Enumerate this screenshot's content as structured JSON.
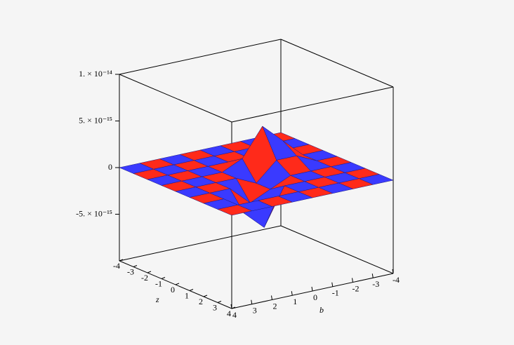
{
  "chart_data": {
    "type": "surface",
    "b_axis": {
      "label": "b",
      "lim": [
        -4,
        4
      ],
      "ticks": [
        -4,
        -3,
        -2,
        -1,
        0,
        1,
        2,
        3,
        4
      ]
    },
    "z_axis": {
      "label": "z",
      "lim": [
        -4,
        4
      ],
      "ticks": [
        -4,
        -3,
        -2,
        -1,
        0,
        1,
        2,
        3,
        4
      ]
    },
    "value_axis": {
      "lim": [
        -1e-14,
        1e-14
      ],
      "ticks": [
        {
          "value": 1e-14,
          "label": "1. × 10⁻¹⁴"
        },
        {
          "value": 5e-15,
          "label": "5. × 10⁻¹⁵"
        },
        0,
        {
          "value": -5e-15,
          "label": "-5. × 10⁻¹⁵"
        }
      ]
    },
    "colors": [
      "#ff2a1a",
      "#3a3aff"
    ],
    "values": [
      [
        0,
        0,
        0,
        0,
        0,
        0,
        0,
        0,
        0
      ],
      [
        0,
        0,
        0,
        0,
        0,
        0,
        0,
        0,
        0
      ],
      [
        0,
        0,
        0,
        0,
        0,
        0,
        0,
        0,
        0
      ],
      [
        0,
        0,
        2e-15,
        4e-15,
        1e-15,
        0,
        0,
        0,
        0
      ],
      [
        0,
        0,
        1e-15,
        1e-15,
        -1e-15,
        0,
        0,
        0,
        0
      ],
      [
        0,
        0,
        0,
        0,
        -1e-15,
        -2e-15,
        0,
        0,
        0
      ],
      [
        0,
        0,
        0,
        0,
        0,
        -4e-15,
        -2e-15,
        0,
        0
      ],
      [
        0,
        0,
        0,
        0,
        0,
        0,
        0,
        0,
        0
      ],
      [
        0,
        0,
        0,
        0,
        0,
        0,
        0,
        0,
        0
      ]
    ]
  }
}
